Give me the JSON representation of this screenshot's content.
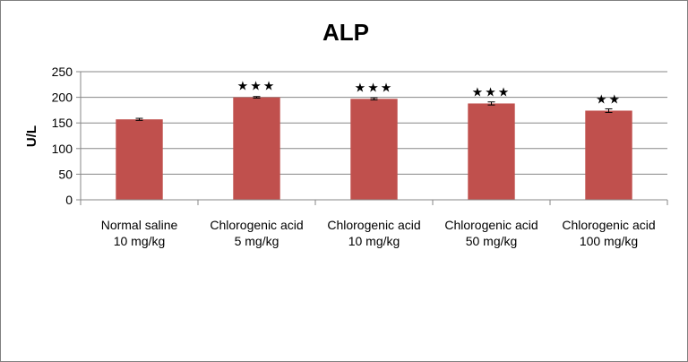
{
  "chart_data": {
    "type": "bar",
    "title": "ALP",
    "ylabel": "U/L",
    "xlabel": "",
    "ylim": [
      0,
      250
    ],
    "yticks": [
      0,
      50,
      100,
      150,
      200,
      250
    ],
    "grid": true,
    "categories": [
      [
        "Normal saline",
        "10 mg/kg"
      ],
      [
        "Chlorogenic acid",
        "5 mg/kg"
      ],
      [
        "Chlorogenic acid",
        "10 mg/kg"
      ],
      [
        "Chlorogenic acid",
        "50 mg/kg"
      ],
      [
        "Chlorogenic acid",
        "100 mg/kg"
      ]
    ],
    "values": [
      157,
      200,
      197,
      188,
      174
    ],
    "errors": [
      2,
      1.5,
      2,
      3,
      3.5
    ],
    "significance": [
      "",
      "★★★",
      "★★★",
      "★★★",
      "★★"
    ],
    "bar_color": "#c0504d"
  }
}
